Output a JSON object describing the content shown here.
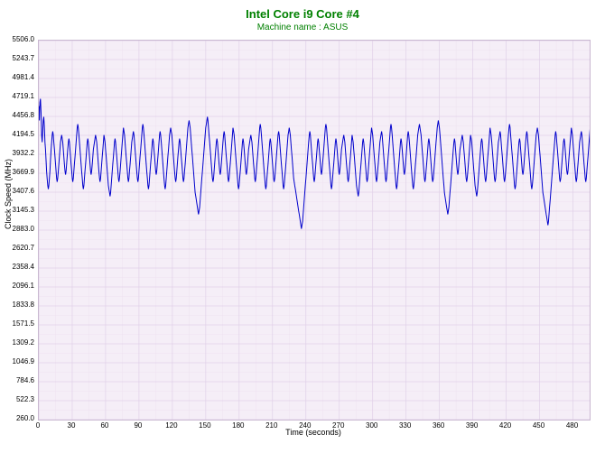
{
  "chart": {
    "title": "Intel Core i9 Core #4",
    "subtitle": "Machine name : ASUS",
    "type": "line",
    "xlabel": "Time (seconds)",
    "ylabel": "Clock Speed (MHz)",
    "xlim": [
      0,
      495
    ],
    "ylim": [
      260.0,
      5506.0
    ],
    "xtick_step": 30,
    "ytick_step": 262.3,
    "ytick_labels": [
      "260.0",
      "522.3",
      "784.6",
      "1046.9",
      "1309.2",
      "1571.5",
      "1833.8",
      "2096.1",
      "2358.4",
      "2620.7",
      "2883.0",
      "3145.3",
      "3407.6",
      "3669.9",
      "3932.2",
      "4194.5",
      "4456.8",
      "4719.1",
      "4981.4",
      "5243.7",
      "5506.0"
    ],
    "background_color": "#f5eef7",
    "grid_color": "#e0d0e8",
    "grid_minor_color": "#eee2f0",
    "border_color": "#c9b8d1",
    "line_color": "#0000cc",
    "line_width": 1,
    "title_color": "#008000",
    "subtitle_color": "#008000",
    "title_fontsize": 13,
    "subtitle_fontsize": 10,
    "axis_label_fontsize": 9,
    "tick_fontsize": 8,
    "data": {
      "x_step": 0.5,
      "y": [
        4600,
        4400,
        4650,
        4700,
        4500,
        4200,
        4100,
        4250,
        4400,
        4450,
        4300,
        4100,
        4000,
        3850,
        3700,
        3600,
        3500,
        3450,
        3500,
        3600,
        3700,
        3850,
        4000,
        4100,
        4200,
        4250,
        4200,
        4100,
        4000,
        3900,
        3800,
        3700,
        3600,
        3550,
        3600,
        3700,
        3800,
        3900,
        4000,
        4100,
        4150,
        4200,
        4150,
        4100,
        4000,
        3900,
        3800,
        3700,
        3650,
        3700,
        3800,
        3900,
        4000,
        4100,
        4150,
        4100,
        4000,
        3900,
        3800,
        3700,
        3600,
        3550,
        3600,
        3700,
        3800,
        3900,
        4000,
        4100,
        4200,
        4300,
        4350,
        4300,
        4200,
        4100,
        4000,
        3900,
        3800,
        3700,
        3600,
        3500,
        3450,
        3500,
        3600,
        3700,
        3800,
        3900,
        4000,
        4100,
        4150,
        4100,
        4000,
        3900,
        3800,
        3700,
        3650,
        3700,
        3800,
        3900,
        4000,
        4050,
        4100,
        4150,
        4200,
        4150,
        4100,
        4000,
        3900,
        3800,
        3700,
        3600,
        3550,
        3600,
        3700,
        3800,
        3900,
        4000,
        4100,
        4200,
        4150,
        4100,
        4000,
        3900,
        3800,
        3700,
        3600,
        3500,
        3450,
        3400,
        3350,
        3400,
        3500,
        3600,
        3700,
        3800,
        3900,
        4000,
        4100,
        4150,
        4100,
        4000,
        3900,
        3800,
        3700,
        3600,
        3550,
        3600,
        3700,
        3800,
        3900,
        4000,
        4100,
        4200,
        4300,
        4250,
        4200,
        4100,
        4000,
        3900,
        3800,
        3700,
        3600,
        3550,
        3600,
        3700,
        3800,
        3900,
        4000,
        4100,
        4150,
        4200,
        4250,
        4200,
        4100,
        4000,
        3900,
        3800,
        3700,
        3600,
        3550,
        3600,
        3700,
        3800,
        3900,
        4000,
        4100,
        4200,
        4300,
        4350,
        4300,
        4200,
        4100,
        4000,
        3900,
        3800,
        3700,
        3600,
        3500,
        3450,
        3500,
        3600,
        3700,
        3800,
        3900,
        4000,
        4100,
        4150,
        4100,
        4000,
        3900,
        3800,
        3700,
        3650,
        3700,
        3800,
        3900,
        4000,
        4100,
        4200,
        4250,
        4200,
        4100,
        4000,
        3900,
        3800,
        3700,
        3600,
        3500,
        3450,
        3500,
        3600,
        3700,
        3800,
        3900,
        4000,
        4100,
        4200,
        4250,
        4300,
        4250,
        4200,
        4100,
        4000,
        3900,
        3800,
        3700,
        3600,
        3550,
        3600,
        3700,
        3800,
        3900,
        4000,
        4100,
        4150,
        4100,
        4000,
        3900,
        3800,
        3700,
        3600,
        3550,
        3600,
        3700,
        3800,
        3900,
        4000,
        4100,
        4200,
        4300,
        4350,
        4400,
        4350,
        4300,
        4200,
        4100,
        4000,
        3900,
        3800,
        3700,
        3600,
        3500,
        3400,
        3350,
        3300,
        3250,
        3200,
        3150,
        3100,
        3150,
        3200,
        3300,
        3400,
        3500,
        3600,
        3700,
        3800,
        3900,
        4000,
        4100,
        4200,
        4300,
        4350,
        4400,
        4450,
        4400,
        4300,
        4200,
        4100,
        4000,
        3900,
        3800,
        3700,
        3600,
        3550,
        3600,
        3700,
        3800,
        3900,
        4000,
        4100,
        4150,
        4100,
        4000,
        3900,
        3800,
        3700,
        3650,
        3700,
        3800,
        3900,
        4000,
        4100,
        4200,
        4250,
        4200,
        4100,
        4000,
        3900,
        3800,
        3700,
        3600,
        3550,
        3600,
        3700,
        3800,
        3900,
        4000,
        4100,
        4200,
        4300,
        4250,
        4200,
        4100,
        4000,
        3900,
        3800,
        3700,
        3600,
        3500,
        3450,
        3500,
        3600,
        3700,
        3800,
        3900,
        4000,
        4100,
        4150,
        4100,
        4000,
        3900,
        3800,
        3700,
        3650,
        3700,
        3800,
        3900,
        4000,
        4050,
        4100,
        4150,
        4200,
        4150,
        4100,
        4000,
        3900,
        3800,
        3700,
        3600,
        3550,
        3600,
        3700,
        3800,
        3900,
        4000,
        4100,
        4200,
        4300,
        4350,
        4300,
        4200,
        4100,
        4000,
        3900,
        3800,
        3700,
        3600,
        3500,
        3450,
        3500,
        3600,
        3700,
        3800,
        3900,
        4000,
        4100,
        4150,
        4100,
        4000,
        3900,
        3800,
        3700,
        3600,
        3550,
        3600,
        3700,
        3800,
        3900,
        4000,
        4100,
        4200,
        4250,
        4200,
        4100,
        4000,
        3900,
        3800,
        3700,
        3600,
        3500,
        3450,
        3500,
        3600,
        3700,
        3800,
        3900,
        4000,
        4100,
        4200,
        4250,
        4300,
        4250,
        4200,
        4100,
        4000,
        3900,
        3800,
        3700,
        3600,
        3550,
        3500,
        3450,
        3400,
        3350,
        3300,
        3250,
        3200,
        3150,
        3100,
        3050,
        3000,
        2950,
        2900,
        2950,
        3000,
        3100,
        3200,
        3300,
        3400,
        3500,
        3600,
        3700,
        3800,
        3900,
        4000,
        4100,
        4200,
        4250,
        4200,
        4100,
        4000,
        3900,
        3800,
        3700,
        3600,
        3550,
        3600,
        3700,
        3800,
        3900,
        4000,
        4100,
        4150,
        4100,
        4000,
        3900,
        3800,
        3700,
        3650,
        3700,
        3800,
        3900,
        4000,
        4100,
        4200,
        4300,
        4350,
        4300,
        4200,
        4100,
        4000,
        3900,
        3800,
        3700,
        3600,
        3500,
        3450,
        3500,
        3600,
        3700,
        3800,
        3900,
        4000,
        4100,
        4150,
        4100,
        4000,
        3900,
        3800,
        3700,
        3650,
        3700,
        3800,
        3900,
        4000,
        4050,
        4100,
        4150,
        4200,
        4150,
        4100,
        4000,
        3900,
        3800,
        3700,
        3600,
        3550,
        3600,
        3700,
        3800,
        3900,
        4000,
        4100,
        4200,
        4150,
        4100,
        4000,
        3900,
        3800,
        3700,
        3600,
        3500,
        3450,
        3400,
        3350,
        3400,
        3500,
        3600,
        3700,
        3800,
        3900,
        4000,
        4100,
        4150,
        4100,
        4000,
        3900,
        3800,
        3700,
        3600,
        3550,
        3600,
        3700,
        3800,
        3900,
        4000,
        4100,
        4200,
        4300,
        4250,
        4200,
        4100,
        4000,
        3900,
        3800,
        3700,
        3600,
        3550,
        3600,
        3700,
        3800,
        3900,
        4000,
        4100,
        4150,
        4200,
        4250,
        4200,
        4100,
        4000,
        3900,
        3800,
        3700,
        3600,
        3550,
        3600,
        3700,
        3800,
        3900,
        4000,
        4100,
        4200,
        4300,
        4350,
        4300,
        4200,
        4100,
        4000,
        3900,
        3800,
        3700,
        3600,
        3500,
        3450,
        3500,
        3600,
        3700,
        3800,
        3900,
        4000,
        4100,
        4150,
        4100,
        4000,
        3900,
        3800,
        3700,
        3650,
        3700,
        3800,
        3900,
        4000,
        4100,
        4200,
        4250,
        4200,
        4100,
        4000,
        3900,
        3800,
        3700,
        3600,
        3500,
        3450,
        3500,
        3600,
        3700,
        3800,
        3900,
        4000,
        4100,
        4200,
        4250,
        4300,
        4350,
        4300,
        4250,
        4200,
        4100,
        4000,
        3900,
        3800,
        3700,
        3600,
        3550,
        3600,
        3700,
        3800,
        3900,
        4000,
        4100,
        4150,
        4100,
        4000,
        3900,
        3800,
        3700,
        3600,
        3550,
        3600,
        3700,
        3800,
        3900,
        4000,
        4100,
        4200,
        4300,
        4350,
        4400,
        4350,
        4300,
        4200,
        4100,
        4000,
        3900,
        3800,
        3700,
        3600,
        3500,
        3400,
        3350,
        3300,
        3250,
        3200,
        3150,
        3100,
        3150,
        3200,
        3300,
        3400,
        3500,
        3600,
        3700,
        3800,
        3900,
        4000,
        4100,
        4150,
        4100,
        4000,
        3900,
        3800,
        3700,
        3650,
        3700,
        3800,
        3900,
        4000,
        4050,
        4100,
        4150,
        4200,
        4150,
        4100,
        4000,
        3900,
        3800,
        3700,
        3600,
        3550,
        3600,
        3700,
        3800,
        3900,
        4000,
        4100,
        4200,
        4150,
        4100,
        4000,
        3900,
        3800,
        3700,
        3600,
        3500,
        3450,
        3400,
        3350,
        3400,
        3500,
        3600,
        3700,
        3800,
        3900,
        4000,
        4100,
        4150,
        4100,
        4000,
        3900,
        3800,
        3700,
        3600,
        3550,
        3600,
        3700,
        3800,
        3900,
        4000,
        4100,
        4200,
        4300,
        4250,
        4200,
        4100,
        4000,
        3900,
        3800,
        3700,
        3600,
        3550,
        3600,
        3700,
        3800,
        3900,
        4000,
        4100,
        4150,
        4200,
        4250,
        4200,
        4100,
        4000,
        3900,
        3800,
        3700,
        3600,
        3550,
        3600,
        3700,
        3800,
        3900,
        4000,
        4100,
        4200,
        4300,
        4350,
        4300,
        4200,
        4100,
        4000,
        3900,
        3800,
        3700,
        3600,
        3500,
        3450,
        3500,
        3600,
        3700,
        3800,
        3900,
        4000,
        4100,
        4150,
        4100,
        4000,
        3900,
        3800,
        3700,
        3650,
        3700,
        3800,
        3900,
        4000,
        4100,
        4200,
        4250,
        4200,
        4100,
        4000,
        3900,
        3800,
        3700,
        3600,
        3500,
        3450,
        3500,
        3600,
        3700,
        3800,
        3900,
        4000,
        4100,
        4200,
        4250,
        4300,
        4250,
        4200,
        4100,
        4000,
        3900,
        3800,
        3700,
        3600,
        3500,
        3400,
        3350,
        3300,
        3250,
        3200,
        3150,
        3100,
        3050,
        3000,
        2950,
        3000,
        3100,
        3200,
        3300,
        3400,
        3500,
        3600,
        3700,
        3800,
        3900,
        4000,
        4100,
        4200,
        4250,
        4200,
        4100,
        4000,
        3900,
        3800,
        3700,
        3600,
        3550,
        3600,
        3700,
        3800,
        3900,
        4000,
        4100,
        4150,
        4100,
        4000,
        3900,
        3800,
        3700,
        3650,
        3700,
        3800,
        3900,
        4000,
        4100,
        4200,
        4300,
        4250,
        4200,
        4100,
        4000,
        3900,
        3800,
        3700,
        3600,
        3550,
        3600,
        3700,
        3800,
        3900,
        4000,
        4100,
        4150,
        4200,
        4250,
        4200,
        4100,
        4000,
        3900,
        3800,
        3700,
        3600,
        3550,
        3600,
        3700,
        3800,
        3900,
        4000,
        4100,
        4200,
        4300,
        4350,
        4300,
        4200,
        4100,
        4000,
        3900,
        3800,
        3700
      ]
    }
  }
}
